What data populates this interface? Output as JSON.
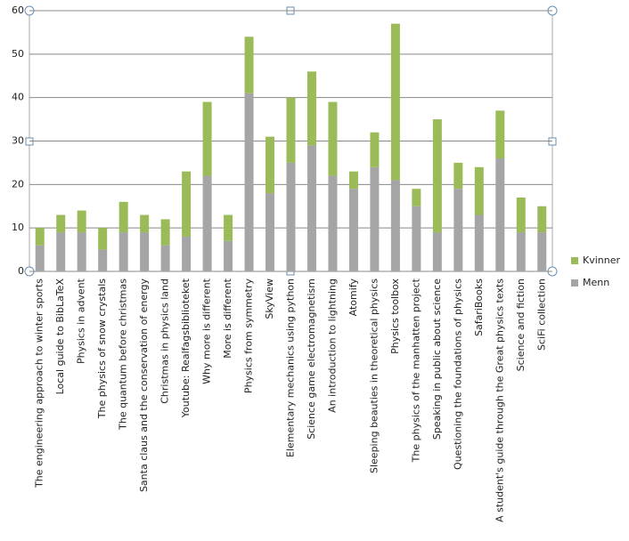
{
  "chart_data": {
    "type": "stacked_bar",
    "categories": [
      "The engineering approach to winter sports",
      "Local guide to BibLaTeX",
      "Physics in advent",
      "The physics of snow crystals",
      "The quantum before christmas",
      "Santa claus and the conservation of energy",
      "Christmas in physics land",
      "Youtube: Realfagsbiblioteket",
      "Why more is different",
      "More is different",
      "Physics from symmetry",
      "SkyView",
      "Elementary mechanics using python",
      "Science game electromagnetism",
      "An introduction to lightning",
      "Atomify",
      "Sleeping beauties in theoretical physics",
      "Physics toolbox",
      "The physics of the manhatten project",
      "Speaking in public about science",
      "Questioning the foundations of physics",
      "SafariBooks",
      "A student's guide through the Great physics texts",
      "Science and fiction",
      "SciFi collection"
    ],
    "series": [
      {
        "name": "Menn",
        "color": "#a5a5a5",
        "values": [
          6,
          9,
          9,
          5,
          9,
          9,
          6,
          8,
          22,
          7,
          41,
          18,
          25,
          29,
          22,
          19,
          24,
          21,
          15,
          9,
          19,
          13,
          26,
          9,
          9
        ]
      },
      {
        "name": "Kvinner",
        "color": "#9bbb59",
        "values": [
          4,
          4,
          5,
          5,
          7,
          4,
          6,
          15,
          17,
          6,
          13,
          13,
          15,
          17,
          17,
          4,
          8,
          36,
          4,
          26,
          6,
          11,
          11,
          8,
          6
        ]
      }
    ],
    "ylim": [
      0,
      60
    ],
    "yticks": [
      0,
      10,
      20,
      30,
      40,
      50,
      60
    ],
    "grid": true,
    "legend": "right"
  }
}
